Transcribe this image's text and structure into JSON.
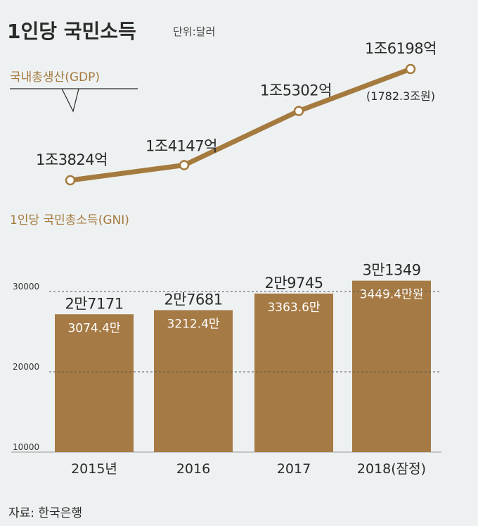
{
  "title": "1인당 국민소득",
  "unit": "단위:달러",
  "source": "자료: 한국은행",
  "colors": {
    "accent": "#a47a3e",
    "bar": "#a67a44",
    "background": "#eef1f1"
  },
  "chart_data": [
    {
      "type": "line",
      "name": "국내총생산(GDP)",
      "categories": [
        "2015년",
        "2016",
        "2017",
        "2018(잠정)"
      ],
      "values": [
        1382.4,
        1414.7,
        1530.2,
        1619.8
      ],
      "value_unit": "억 달러",
      "labels": [
        "1조3824억",
        "1조4147억",
        "1조5302억",
        "1조6198억"
      ],
      "annotations": [
        "",
        "",
        "",
        "(1782.3조원)"
      ]
    },
    {
      "type": "bar",
      "name": "1인당 국민총소득(GNI)",
      "categories": [
        "2015년",
        "2016",
        "2017",
        "2018(잠정)"
      ],
      "values": [
        27171,
        27681,
        29745,
        31349
      ],
      "labels": [
        "2만7171",
        "2만7681",
        "2만9745",
        "3만1349"
      ],
      "krw_labels": [
        "3074.4만",
        "3212.4만",
        "3363.6만",
        "3449.4만원"
      ],
      "ylim": [
        10000,
        30000
      ],
      "yticks": [
        "10000",
        "20000",
        "30000"
      ],
      "ytick_values": [
        10000,
        20000,
        30000
      ],
      "gridlines": [
        20000,
        30000
      ]
    }
  ]
}
